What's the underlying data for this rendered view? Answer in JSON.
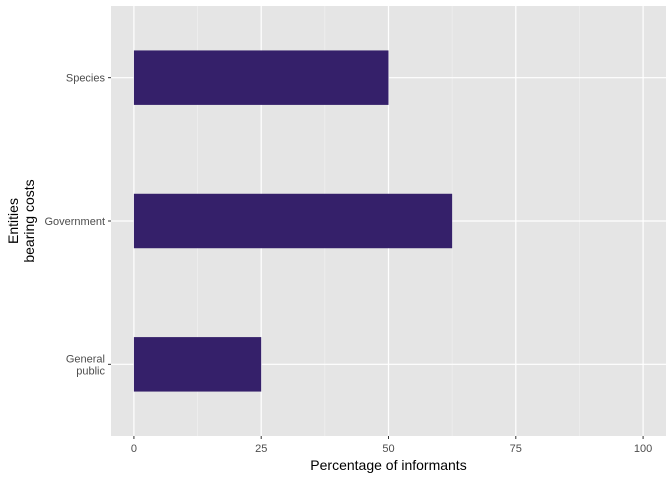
{
  "chart_data": {
    "type": "bar",
    "orientation": "horizontal",
    "categories": [
      "General\npublic",
      "Government",
      "Species"
    ],
    "values": [
      25,
      62.5,
      50
    ],
    "xlabel": "Percentage of informants",
    "ylabel": "Entities\nbearing costs",
    "xlim": [
      -4.5,
      104.5
    ],
    "xticks": [
      "0",
      "25",
      "50",
      "75",
      "100"
    ],
    "grid": true,
    "legend": "none",
    "colors": {
      "bar": "#35206A",
      "panel": "#E5E5E5",
      "grid_major": "#FFFFFF",
      "grid_minor": "#F2F2F2"
    }
  }
}
